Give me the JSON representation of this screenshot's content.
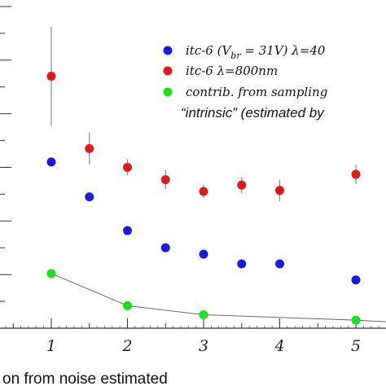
{
  "chart_data": {
    "type": "scatter",
    "x_ticks": [
      "1",
      "2",
      "3",
      "4",
      "5"
    ],
    "xlim": [
      0.35,
      5.4
    ],
    "ylim": [
      0,
      6
    ],
    "grid": false,
    "xlabel": "on from noise estimated",
    "legend_position": "top-right",
    "legend": {
      "blue": {
        "prefix": "itc-6 (V",
        "sub": "br",
        "suffix": " = 31V) λ=40"
      },
      "red": "itc-6 λ=800nm",
      "green": "contrib. from sampling",
      "extra": "“intrinsic” (estimated by"
    },
    "series": [
      {
        "color": "#1a1ae0",
        "x": [
          1,
          1.5,
          2,
          2.5,
          3,
          3.5,
          4,
          5
        ],
        "y": [
          3.1,
          2.45,
          1.82,
          1.5,
          1.38,
          1.2,
          1.2,
          0.9
        ]
      },
      {
        "color": "#e01a1a",
        "x": [
          1,
          1.5,
          2,
          2.5,
          3,
          3.5,
          4,
          5
        ],
        "y": [
          4.7,
          3.35,
          3.0,
          2.77,
          2.55,
          2.67,
          2.57,
          2.87
        ],
        "yerr": [
          0.92,
          0.3,
          0.15,
          0.17,
          0.12,
          0.15,
          0.2,
          0.18
        ]
      },
      {
        "color": "#1ae01a",
        "x": [
          1,
          2,
          3,
          5
        ],
        "y": [
          1.02,
          0.42,
          0.25,
          0.15
        ],
        "line_x": [
          1,
          2,
          3,
          5,
          5.4
        ],
        "line_y": [
          1.02,
          0.42,
          0.25,
          0.15,
          0.12
        ]
      }
    ]
  }
}
